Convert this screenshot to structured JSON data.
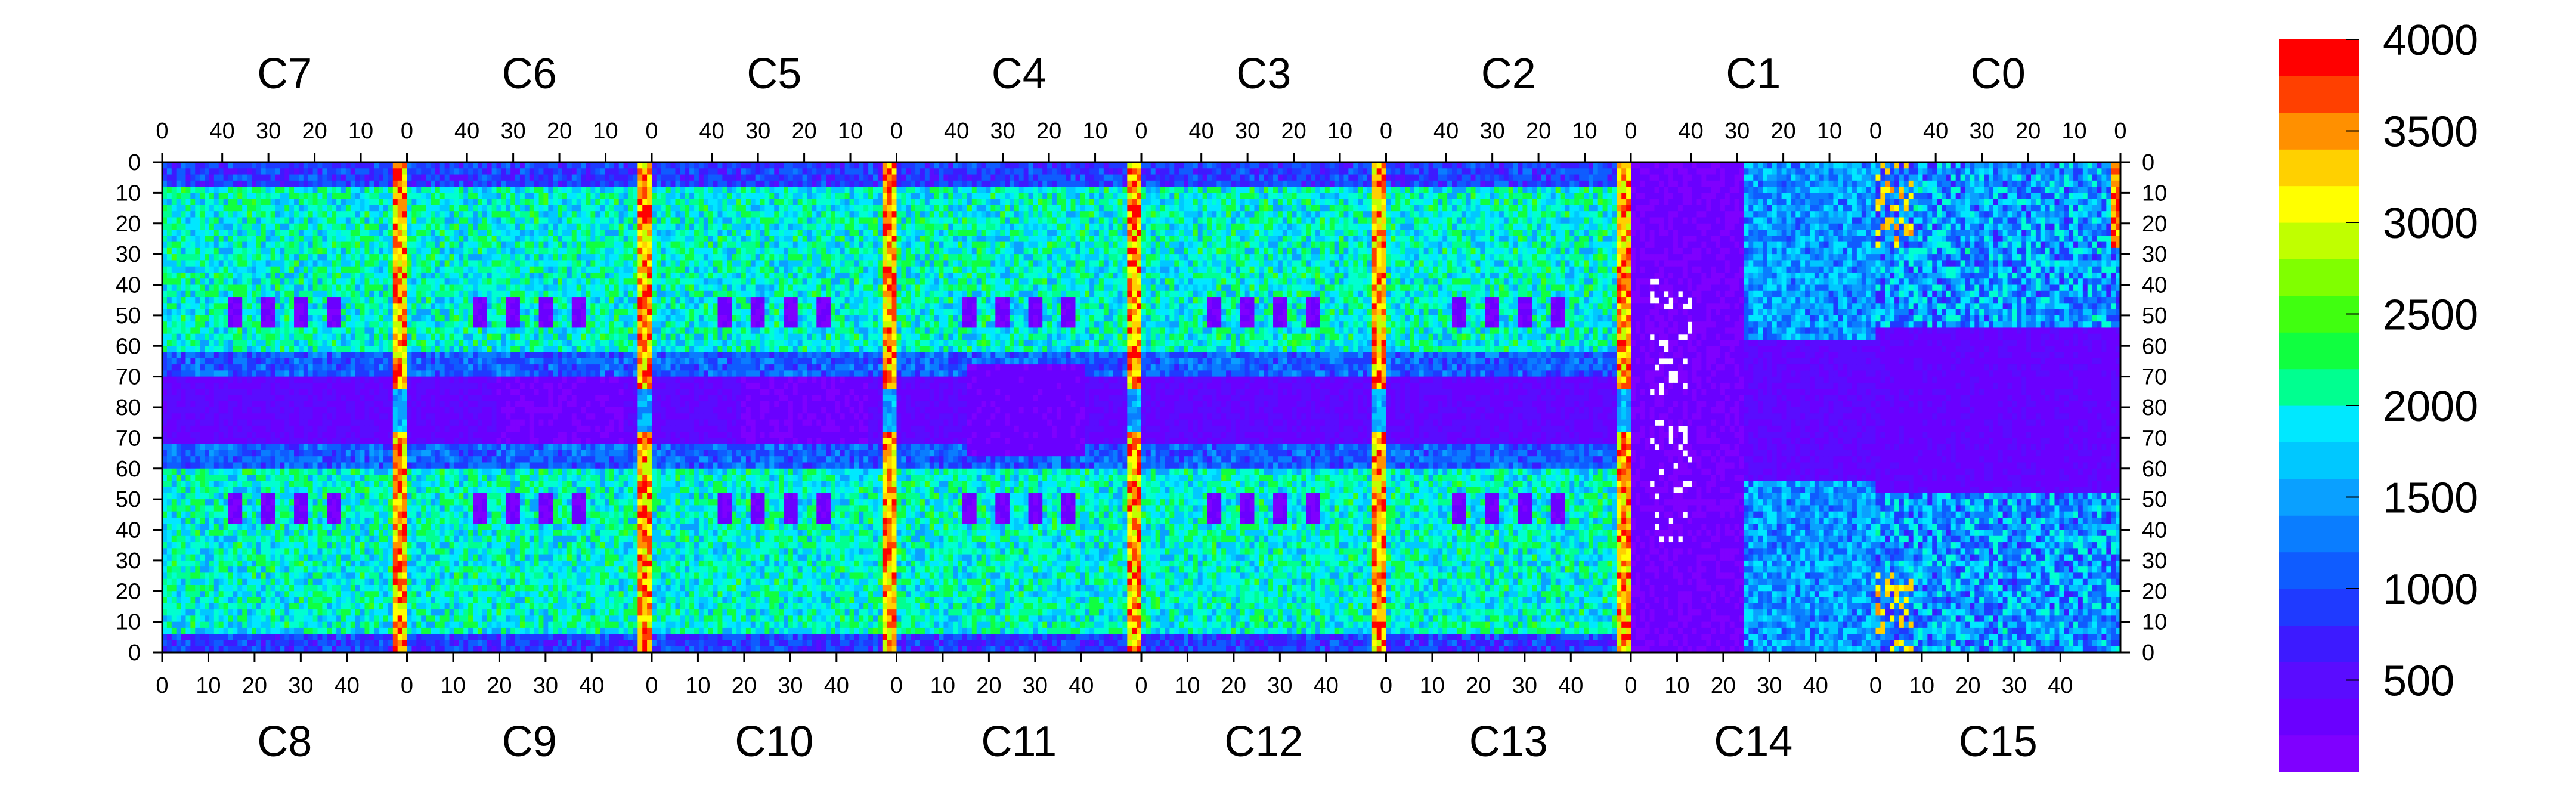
{
  "chart_data": {
    "type": "heatmap",
    "title": "",
    "xlabel": "",
    "ylabel": "",
    "top_chips": [
      "C7",
      "C6",
      "C5",
      "C4",
      "C3",
      "C2",
      "C1",
      "C0"
    ],
    "bottom_chips": [
      "C8",
      "C9",
      "C10",
      "C11",
      "C12",
      "C13",
      "C14",
      "C15"
    ],
    "top_chip_x_ticks": [
      "40",
      "30",
      "20",
      "10",
      "0"
    ],
    "bottom_chip_x_ticks": [
      "0",
      "10",
      "20",
      "30",
      "40"
    ],
    "top_x_end_tick": "0",
    "bottom_x_start_tick": "0",
    "y_ticks": [
      "0",
      "10",
      "20",
      "30",
      "40",
      "50",
      "60",
      "70",
      "80",
      "70",
      "60",
      "50",
      "40",
      "30",
      "20",
      "10",
      "0"
    ],
    "z_range": [
      0,
      4000
    ],
    "colorbar_ticks": [
      "4000",
      "3500",
      "3000",
      "2500",
      "2000",
      "1500",
      "1000",
      "500"
    ],
    "colorbar_levels": 20,
    "colormap": [
      "#7f00ff",
      "#6a00ff",
      "#5a0cff",
      "#3d1aff",
      "#1f3aff",
      "#0f5cff",
      "#0a7dff",
      "#0aa0ff",
      "#00c8ff",
      "#00e8ff",
      "#00ffd0",
      "#00ff90",
      "#10ff40",
      "#40ff10",
      "#80ff00",
      "#c0ff00",
      "#ffff00",
      "#ffd000",
      "#ff9000",
      "#ff4000",
      "#ff0000"
    ],
    "grid": false
  }
}
